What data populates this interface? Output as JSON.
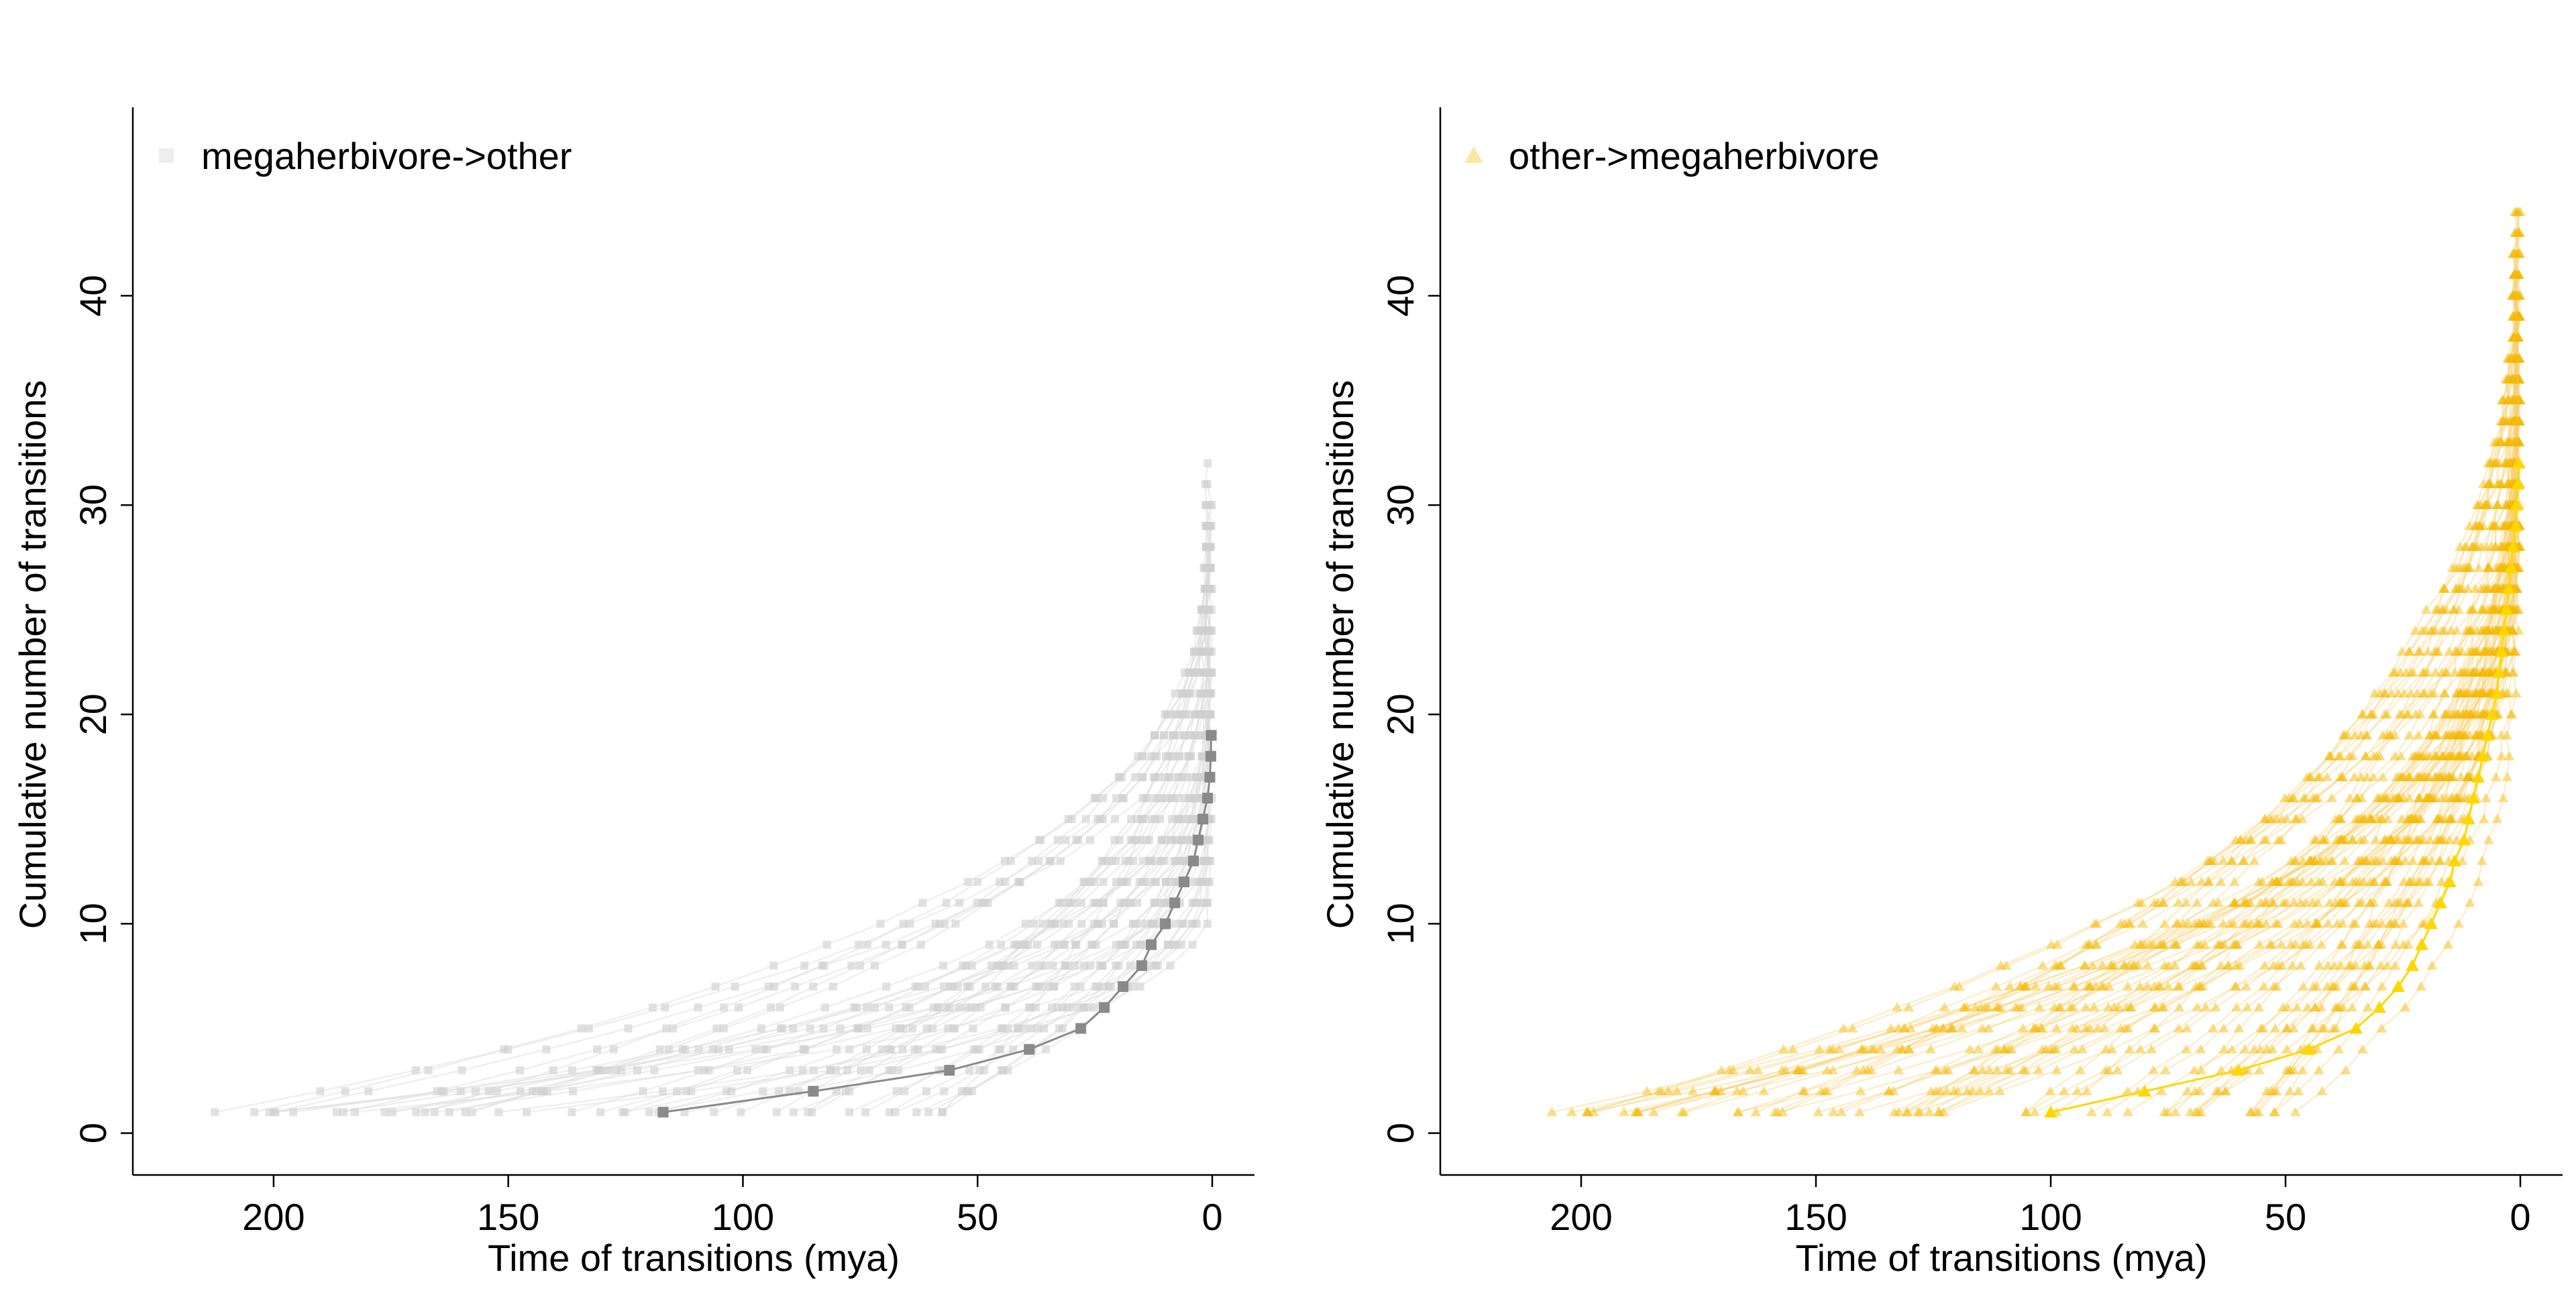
{
  "chart_data": [
    {
      "type": "line",
      "marker": "square",
      "xlabel": "Time of transitions (mya)",
      "ylabel": "Cumulative number of transitions",
      "xlim": [
        230,
        -9
      ],
      "ylim": [
        -2,
        49
      ],
      "xticks": [
        200,
        150,
        100,
        50,
        0
      ],
      "yticks": [
        0,
        10,
        20,
        30,
        40
      ],
      "legend": {
        "label": "megaherbivore->other",
        "position": "top-left"
      },
      "colors": {
        "samples": "#dcdcdc",
        "mean": "#8a8a8a",
        "marker": "#cfcfcf"
      },
      "mean_series": {
        "x": [
          117,
          85,
          56,
          39,
          28,
          23,
          19,
          15,
          13,
          10,
          8,
          6,
          4,
          3,
          2,
          1,
          0.5,
          0.3,
          0.2
        ],
        "y": [
          1,
          2,
          3,
          4,
          5,
          6,
          7,
          8,
          9,
          10,
          11,
          12,
          13,
          14,
          15,
          16,
          17,
          18,
          19
        ]
      },
      "sample_max_y": 32,
      "sample_oldest_x": 218
    },
    {
      "type": "line",
      "marker": "triangle",
      "xlabel": "Time of transitions (mya)",
      "ylabel": "Cumulative number of transitions",
      "xlim": [
        230,
        -9
      ],
      "ylim": [
        -2,
        49
      ],
      "xticks": [
        200,
        150,
        100,
        50,
        0
      ],
      "yticks": [
        0,
        10,
        20,
        30,
        40
      ],
      "legend": {
        "label": "other->megaherbivore",
        "position": "top-left"
      },
      "colors": {
        "samples": "#f6cd6c",
        "mean": "#ffd700",
        "marker": "#f5b800"
      },
      "mean_series": {
        "x": [
          100,
          80,
          60,
          45,
          35,
          30,
          26,
          23,
          21,
          19,
          17,
          15,
          14,
          12,
          11,
          10,
          9,
          8,
          7,
          6,
          5,
          4.5,
          4,
          3.5,
          3,
          2.5,
          2,
          1.5,
          1,
          0.8,
          0.5,
          0.3
        ],
        "y": [
          1,
          2,
          3,
          4,
          5,
          6,
          7,
          8,
          9,
          10,
          11,
          12,
          13,
          14,
          15,
          16,
          17,
          18,
          19,
          20,
          21,
          22,
          23,
          24,
          25,
          26,
          27,
          28,
          29,
          30,
          31,
          32
        ]
      },
      "sample_max_y": 45,
      "sample_oldest_x": 206
    }
  ]
}
